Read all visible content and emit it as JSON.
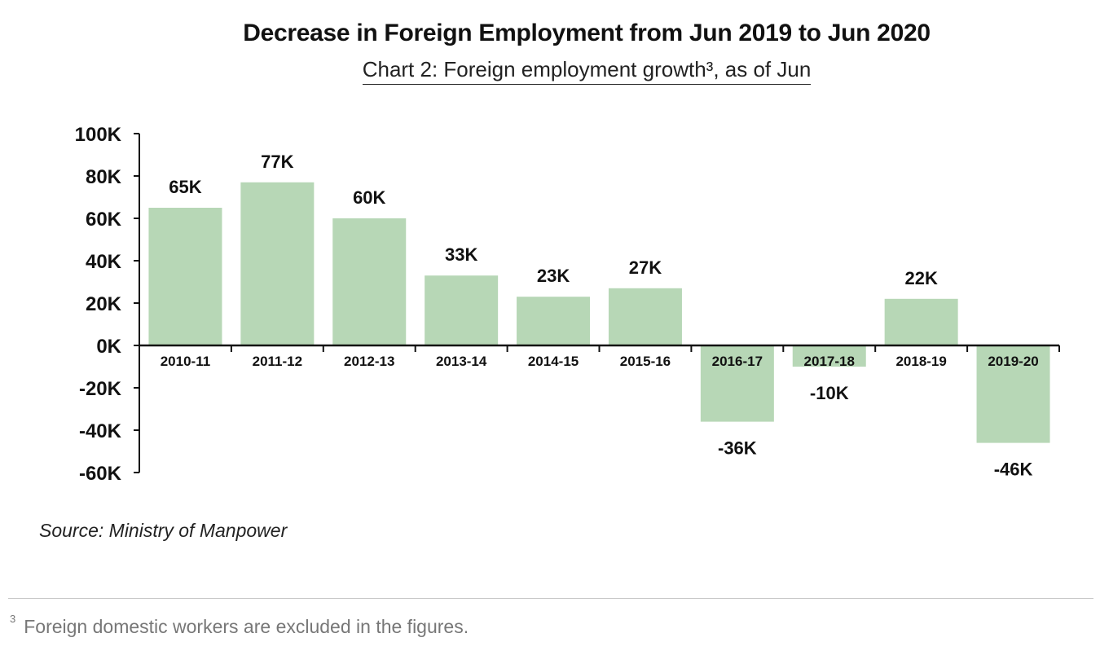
{
  "title": "Decrease in Foreign Employment from Jun 2019 to Jun 2020",
  "subtitle": "Chart 2: Foreign employment growth³, as of Jun",
  "source": "Source: Ministry of Manpower",
  "footnote": {
    "marker": "3",
    "text": "Foreign domestic workers are excluded in the figures."
  },
  "colors": {
    "bar": "#b7d7b6",
    "axis": "#111111",
    "divider": "#c8c8c8"
  },
  "chart_data": {
    "type": "bar",
    "title": "Decrease in Foreign Employment from Jun 2019 to Jun 2020",
    "subtitle": "Chart 2: Foreign employment growth³, as of Jun",
    "categories": [
      "2010-11",
      "2011-12",
      "2012-13",
      "2013-14",
      "2014-15",
      "2015-16",
      "2016-17",
      "2017-18",
      "2018-19",
      "2019-20"
    ],
    "values": [
      65,
      77,
      60,
      33,
      23,
      27,
      -36,
      -10,
      22,
      -46
    ],
    "value_labels": [
      "65K",
      "77K",
      "60K",
      "33K",
      "23K",
      "27K",
      "-36K",
      "-10K",
      "22K",
      "-46K"
    ],
    "unit": "thousands",
    "ylim": [
      -60,
      100
    ],
    "yticks": [
      100,
      80,
      60,
      40,
      20,
      0,
      -20,
      -40,
      -60
    ],
    "ytick_labels": [
      "100K",
      "80K",
      "60K",
      "40K",
      "20K",
      "0K",
      "-20K",
      "-40K",
      "-60K"
    ],
    "xlabel": "",
    "ylabel": "",
    "grid": false,
    "legend": "none"
  }
}
